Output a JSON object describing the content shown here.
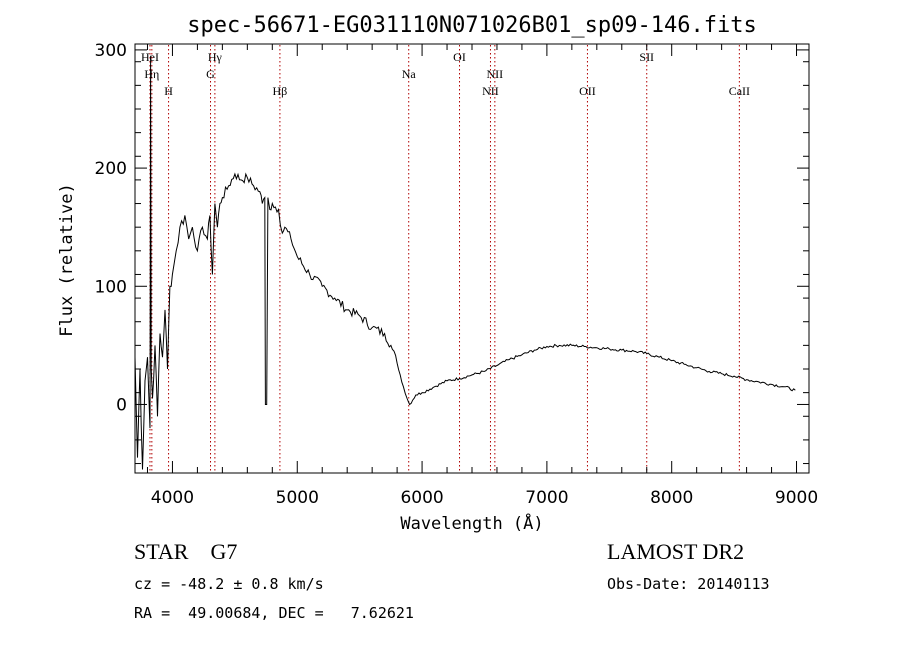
{
  "chart_data": {
    "type": "line",
    "title": "spec-56671-EG031110N071026B01_sp09-146.fits",
    "xlabel": "Wavelength (Å)",
    "ylabel": "Flux (relative)",
    "xlim": [
      3700,
      9100
    ],
    "ylim": [
      -58,
      305
    ],
    "x_ticks": [
      4000,
      5000,
      6000,
      7000,
      8000,
      9000
    ],
    "x_tick_labels": [
      "4000",
      "5000",
      "6000",
      "7000",
      "8000",
      "9000"
    ],
    "y_ticks": [
      0,
      100,
      200,
      300
    ],
    "y_tick_labels": [
      "0",
      "100",
      "200",
      "300"
    ],
    "grid": false,
    "spectral_lines": [
      {
        "label": "HeI",
        "wavelength": 3820,
        "row": 1
      },
      {
        "label": "Hη",
        "wavelength": 3835,
        "row": 2
      },
      {
        "label": "H",
        "wavelength": 3969,
        "row": 3
      },
      {
        "label": "Hγ",
        "wavelength": 4340,
        "row": 1
      },
      {
        "label": "G",
        "wavelength": 4305,
        "row": 2
      },
      {
        "label": "Hβ",
        "wavelength": 4861,
        "row": 3
      },
      {
        "label": "Na",
        "wavelength": 5893,
        "row": 2
      },
      {
        "label": "OI",
        "wavelength": 6300,
        "row": 1
      },
      {
        "label": "NII",
        "wavelength": 6583,
        "row": 2
      },
      {
        "label": "NII",
        "wavelength": 6548,
        "row": 3
      },
      {
        "label": "OII",
        "wavelength": 7325,
        "row": 3
      },
      {
        "label": "SII",
        "wavelength": 7800,
        "row": 1
      },
      {
        "label": "CaII",
        "wavelength": 8542,
        "row": 3
      }
    ],
    "series": [
      {
        "x": [
          3700,
          3720,
          3740,
          3760,
          3780,
          3800,
          3820,
          3825,
          3830,
          3840,
          3860,
          3880,
          3900,
          3920,
          3940,
          3960,
          3980,
          4000,
          4030,
          4060,
          4100,
          4130,
          4160,
          4200,
          4240,
          4280,
          4300,
          4320,
          4340,
          4360,
          4380,
          4400,
          4450,
          4500,
          4550,
          4600,
          4650,
          4700,
          4720,
          4740,
          4745,
          4755,
          4765,
          4780,
          4800,
          4850,
          4880,
          4900,
          4950,
          5000,
          5100,
          5200,
          5300,
          5400,
          5500,
          5600,
          5700,
          5750,
          5800,
          5850,
          5880,
          5900,
          5950,
          6000,
          6100,
          6200,
          6300,
          6400,
          6500,
          6600,
          6700,
          6800,
          6900,
          7000,
          7100,
          7200,
          7300,
          7400,
          7500,
          7600,
          7700,
          7800,
          7900,
          8000,
          8100,
          8200,
          8300,
          8400,
          8500,
          8600,
          8700,
          8800,
          8900,
          8990
        ],
        "y": [
          40,
          -45,
          30,
          -55,
          20,
          40,
          -20,
          295,
          30,
          5,
          50,
          -10,
          60,
          40,
          80,
          30,
          100,
          110,
          130,
          150,
          160,
          140,
          150,
          130,
          150,
          140,
          160,
          110,
          170,
          150,
          170,
          175,
          185,
          195,
          190,
          192,
          185,
          180,
          170,
          175,
          0,
          0,
          175,
          165,
          170,
          165,
          145,
          150,
          140,
          125,
          110,
          100,
          90,
          80,
          75,
          65,
          60,
          50,
          35,
          15,
          5,
          0,
          8,
          10,
          15,
          20,
          22,
          25,
          28,
          33,
          38,
          42,
          46,
          49,
          50,
          50,
          49,
          48,
          47,
          46,
          45,
          43,
          40,
          37,
          34,
          31,
          28,
          26,
          24,
          21,
          19,
          17,
          15,
          12
        ]
      }
    ]
  },
  "info": {
    "object_type": "STAR    G7",
    "velocity": "cz = -48.2 ± 0.8 km/s",
    "coords": "RA =  49.00684, DEC =   7.62621",
    "survey": "LAMOST DR2",
    "obs_date": "Obs-Date: 20140113"
  }
}
